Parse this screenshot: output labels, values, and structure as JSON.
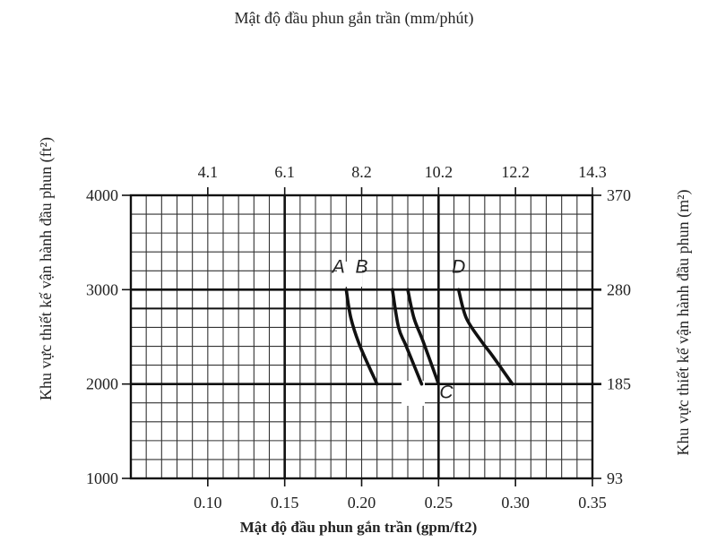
{
  "chart_data": {
    "type": "line",
    "title": "Mật độ đầu phun gắn trần (mm/phút)",
    "xlabel": "Mật độ đầu phun gắn trần (gpm/ft2)",
    "ylabel": "Khu vực thiết kế vận hành đầu phun (ft²)",
    "ylabel_right": "Khu vực thiết kế vận hành đầu phun (m²)",
    "xlim": [
      0.05,
      0.35
    ],
    "ylim": [
      1000,
      4000
    ],
    "grid": true,
    "major_x": [
      0.15,
      0.25
    ],
    "major_y": [
      2000,
      3000
    ],
    "secondary_major_y": 2800,
    "x_ticks": [
      {
        "value": 0.1,
        "label": "0.10"
      },
      {
        "value": 0.15,
        "label": "0.15"
      },
      {
        "value": 0.2,
        "label": "0.20"
      },
      {
        "value": 0.25,
        "label": "0.25"
      },
      {
        "value": 0.3,
        "label": "0.30"
      },
      {
        "value": 0.35,
        "label": "0.35"
      }
    ],
    "x_top_ticks": [
      {
        "value": 0.1,
        "label": "4.1"
      },
      {
        "value": 0.15,
        "label": "6.1"
      },
      {
        "value": 0.2,
        "label": "8.2"
      },
      {
        "value": 0.25,
        "label": "10.2"
      },
      {
        "value": 0.3,
        "label": "12.2"
      },
      {
        "value": 0.35,
        "label": "14.3"
      }
    ],
    "y_ticks": [
      {
        "value": 1000,
        "label": "1000"
      },
      {
        "value": 2000,
        "label": "2000"
      },
      {
        "value": 3000,
        "label": "3000"
      },
      {
        "value": 4000,
        "label": "4000"
      }
    ],
    "y_right_ticks": [
      {
        "value": 1000,
        "label": "93"
      },
      {
        "value": 2000,
        "label": "185"
      },
      {
        "value": 3000,
        "label": "280"
      },
      {
        "value": 4000,
        "label": "370"
      }
    ],
    "series": [
      {
        "name": "A",
        "points": [
          [
            0.19,
            3000
          ],
          [
            0.193,
            2700
          ],
          [
            0.199,
            2400
          ],
          [
            0.21,
            2000
          ]
        ]
      },
      {
        "name": "B",
        "points": [
          [
            0.22,
            3000
          ],
          [
            0.224,
            2600
          ],
          [
            0.229,
            2400
          ],
          [
            0.239,
            2000
          ]
        ]
      },
      {
        "name": "C",
        "points": [
          [
            0.23,
            3000
          ],
          [
            0.234,
            2700
          ],
          [
            0.24,
            2450
          ],
          [
            0.25,
            2000
          ]
        ]
      },
      {
        "name": "D",
        "points": [
          [
            0.263,
            3000
          ],
          [
            0.268,
            2700
          ],
          [
            0.278,
            2450
          ],
          [
            0.285,
            2300
          ],
          [
            0.298,
            2000
          ]
        ]
      }
    ],
    "annotations": [
      {
        "text": "A",
        "x": 0.185,
        "y": 3180
      },
      {
        "text": "B",
        "x": 0.2,
        "y": 3180
      },
      {
        "text": "C",
        "x": 0.255,
        "y": 1850
      },
      {
        "text": "D",
        "x": 0.263,
        "y": 3180
      }
    ]
  }
}
